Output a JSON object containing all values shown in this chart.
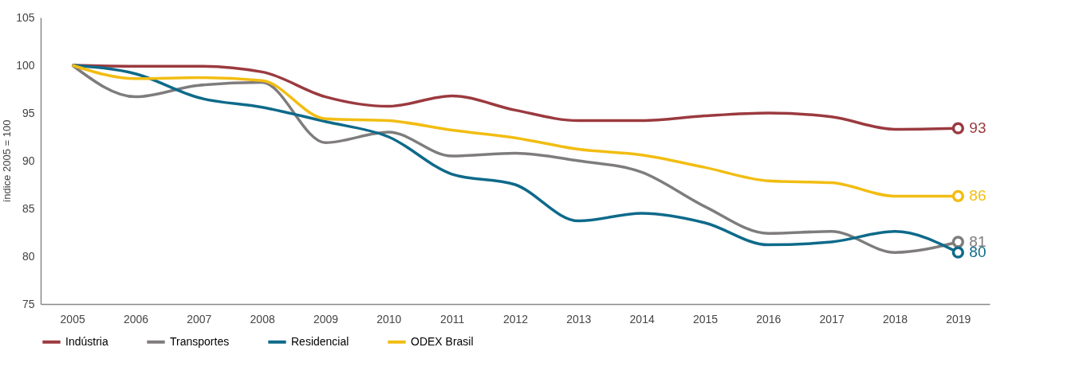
{
  "chart_data": {
    "type": "line",
    "ylabel": "índice 2005 = 100",
    "categories": [
      "2005",
      "2006",
      "2007",
      "2008",
      "2009",
      "2010",
      "2011",
      "2012",
      "2013",
      "2014",
      "2015",
      "2016",
      "2017",
      "2018",
      "2019"
    ],
    "series": [
      {
        "name": "Indústria",
        "color": "#9b3a3f",
        "values": [
          100,
          99.9,
          99.9,
          99.3,
          96.7,
          95.7,
          96.8,
          95.3,
          94.2,
          94.2,
          94.7,
          95.0,
          94.6,
          93.3,
          93.4
        ],
        "value_labels": [
          null,
          null,
          null,
          null,
          null,
          null,
          null,
          null,
          null,
          null,
          null,
          null,
          null,
          null,
          "93"
        ]
      },
      {
        "name": "Transportes",
        "color": "#7f7c7c",
        "values": [
          100,
          96.7,
          97.9,
          98.2,
          91.9,
          93.0,
          90.5,
          90.8,
          90.0,
          88.8,
          85.2,
          82.4,
          82.6,
          80.4,
          81.5
        ],
        "value_labels": [
          null,
          null,
          null,
          null,
          null,
          null,
          null,
          null,
          null,
          null,
          null,
          null,
          null,
          null,
          "81"
        ]
      },
      {
        "name": "Residencial",
        "color": "#0e6a8a",
        "values": [
          100,
          99.1,
          96.6,
          95.6,
          94.1,
          92.5,
          88.6,
          87.5,
          83.7,
          84.5,
          83.5,
          81.2,
          81.5,
          82.6,
          80.4
        ],
        "value_labels": [
          null,
          null,
          null,
          null,
          null,
          null,
          null,
          null,
          null,
          null,
          null,
          null,
          null,
          null,
          "80"
        ]
      },
      {
        "name": "ODEX Brasil",
        "color": "#f2bd12",
        "values": [
          100,
          98.6,
          98.7,
          98.4,
          94.4,
          94.2,
          93.2,
          92.4,
          91.2,
          90.6,
          89.3,
          87.9,
          87.7,
          86.3,
          86.3
        ],
        "value_labels": [
          null,
          null,
          null,
          null,
          null,
          null,
          null,
          null,
          null,
          null,
          null,
          null,
          null,
          null,
          "86"
        ]
      }
    ],
    "ylim": [
      75,
      105
    ],
    "yticks": [
      75,
      80,
      85,
      90,
      95,
      100,
      105
    ],
    "grid": false,
    "legend": "bottom left",
    "line_style": "solid"
  }
}
